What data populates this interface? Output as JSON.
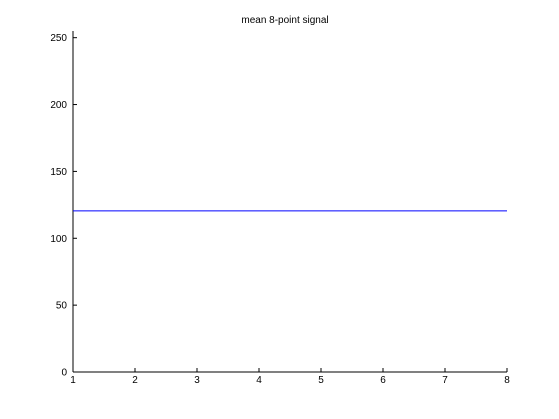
{
  "chart_data": {
    "type": "line",
    "title": "mean 8-point signal",
    "xlabel": "",
    "ylabel": "",
    "xlim": [
      1,
      8
    ],
    "ylim": [
      0,
      255
    ],
    "x_ticks": [
      1,
      2,
      3,
      4,
      5,
      6,
      7,
      8
    ],
    "y_ticks": [
      0,
      50,
      100,
      150,
      200,
      250
    ],
    "grid": false,
    "series": [
      {
        "x": [
          1,
          2,
          3,
          4,
          5,
          6,
          7,
          8
        ],
        "y": [
          120.5,
          120.5,
          120.5,
          120.5,
          120.5,
          120.5,
          120.5,
          120.5
        ],
        "color": "#0000ff"
      }
    ]
  }
}
